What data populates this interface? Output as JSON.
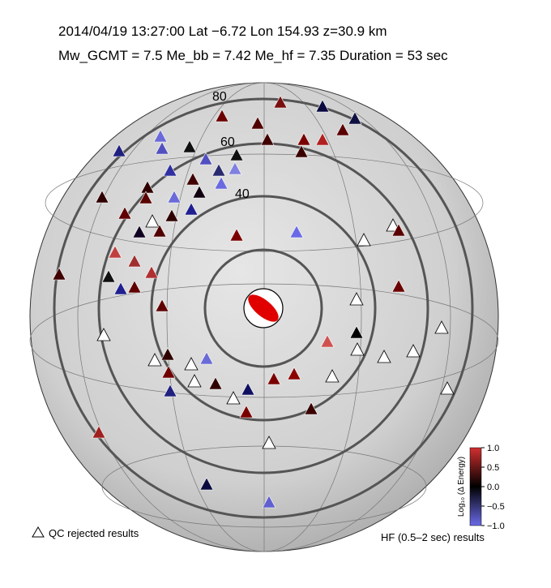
{
  "header": {
    "line1": "2014/04/19  13:27:00   Lat −6.72    Lon 154.93   z=30.9 km",
    "line2": "Mw_GCMT = 7.5   Me_bb = 7.42   Me_hf = 7.35   Duration = 53 sec"
  },
  "rings": {
    "labels": [
      40,
      60,
      80
    ]
  },
  "colorbar": {
    "label": "Log₁₀ (Δ Energy)",
    "lim": [
      -1,
      1
    ],
    "ticks": [
      {
        "value": 1,
        "label": "1.0"
      },
      {
        "value": 0.5,
        "label": "0.5"
      },
      {
        "value": 0,
        "label": "0.0"
      },
      {
        "value": -0.5,
        "label": "−0.5"
      },
      {
        "value": -1,
        "label": "−1.0"
      }
    ]
  },
  "legend": {
    "qc": "QC rejected results",
    "band": "HF (0.5–2 sec) results"
  }
}
